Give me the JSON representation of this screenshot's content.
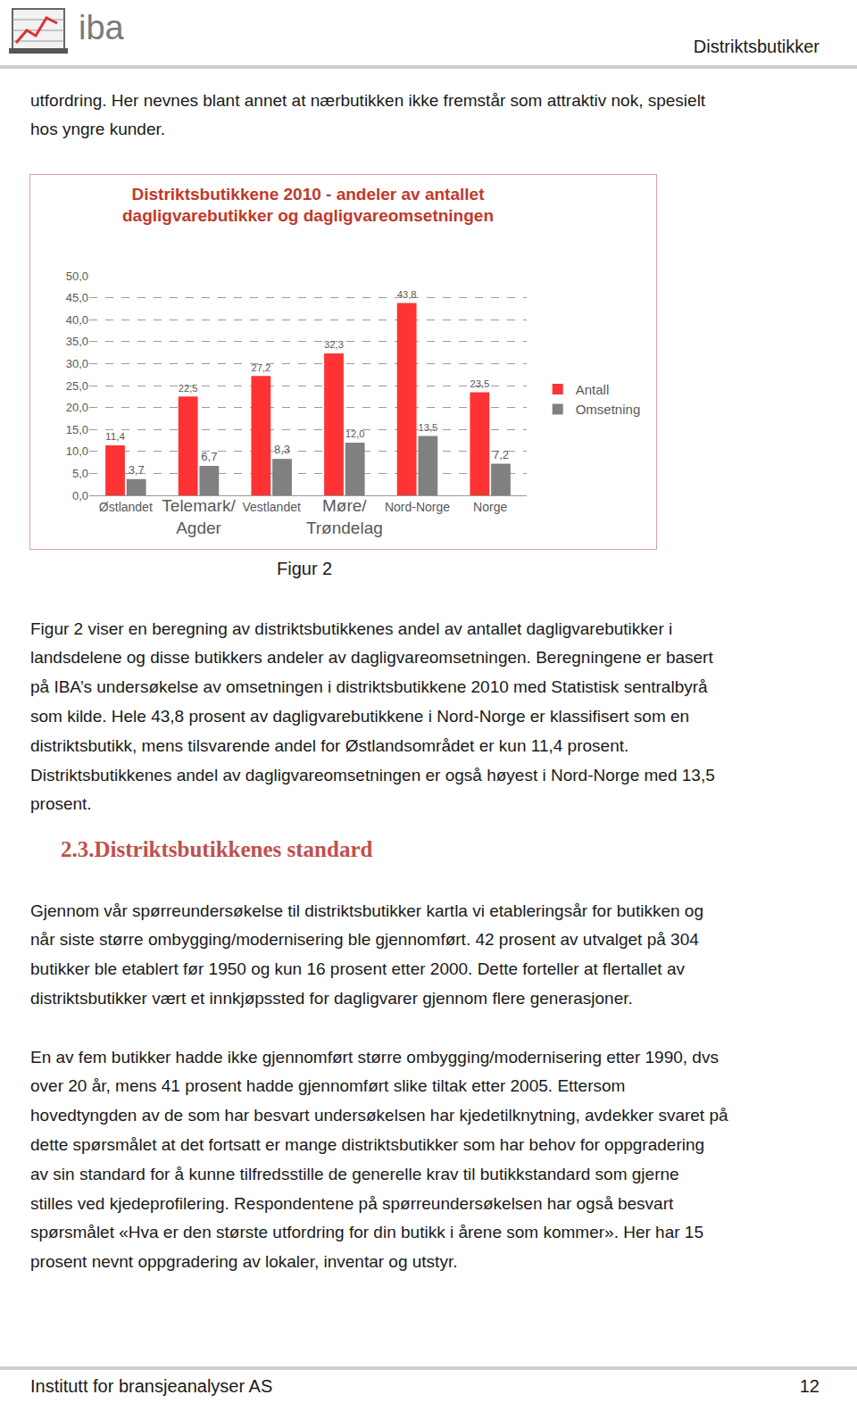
{
  "header": {
    "logo_text": "iba",
    "title": "Distriktsbutikker"
  },
  "intro_lines": [
    "utfordring. Her nevnes blant annet at nærbutikken ikke fremstår som attraktiv nok, spesielt",
    "hos yngre kunder."
  ],
  "chart_data": {
    "type": "bar",
    "title": "Distriktsbutikkene 2010 - andeler av antallet\ndagligvarebutikker og dagligvareomsetningen",
    "categories": [
      "Østlandet",
      "Telemark/\nAgder",
      "Vestlandet",
      "Møre/\nTrøndelag",
      "Nord-Norge",
      "Norge"
    ],
    "series": [
      {
        "name": "Antall",
        "color": "#ff3333",
        "values": [
          11.4,
          22.5,
          27.2,
          32.3,
          43.8,
          23.5
        ],
        "value_labels": [
          "11,4",
          "22,5",
          "27,2",
          "32,3",
          "43,8",
          "23,5"
        ]
      },
      {
        "name": "Omsetning",
        "color": "#808080",
        "values": [
          3.7,
          6.7,
          8.3,
          12.0,
          13.5,
          7.2
        ],
        "value_labels": [
          "3,7",
          "6,7",
          "8,3",
          "12,0",
          "13,5",
          "7,2"
        ]
      }
    ],
    "ylim": [
      0,
      50
    ],
    "yticks": [
      {
        "value": 0,
        "label": "0,0"
      },
      {
        "value": 5,
        "label": "5,0"
      },
      {
        "value": 10,
        "label": "10,0"
      },
      {
        "value": 15,
        "label": "15,0"
      },
      {
        "value": 20,
        "label": "20,0"
      },
      {
        "value": 25,
        "label": "25,0"
      },
      {
        "value": 30,
        "label": "30,0"
      },
      {
        "value": 35,
        "label": "35,0"
      },
      {
        "value": 40,
        "label": "40,0"
      },
      {
        "value": 45,
        "label": "45,0"
      },
      {
        "value": 50,
        "label": "50,0"
      }
    ],
    "grid": true,
    "legend": "right",
    "data_labels": true
  },
  "figure_caption": "Figur 2",
  "paragraph_after_chart": [
    "Figur 2 viser en beregning av distriktsbutikkenes andel av antallet dagligvarebutikker i",
    "landsdelene og disse butikkers andeler av dagligvareomsetningen. Beregningene er basert",
    "på IBA’s undersøkelse av omsetningen i distriktsbutikkene 2010 med Statistisk sentralbyrå",
    "som kilde. Hele 43,8 prosent av dagligvarebutikkene i Nord-Norge er klassifisert som en",
    "distriktsbutikk, mens tilsvarende andel for Østlandsområdet er kun 11,4 prosent.",
    "Distriktsbutikkenes andel av dagligvareomsetningen er også høyest i Nord-Norge med 13,5",
    "prosent."
  ],
  "section_heading": "2.3.Distriktsbutikkenes standard",
  "section_paragraphs": [
    [
      "Gjennom vår spørreundersøkelse til distriktsbutikker kartla vi etableringsår for butikken og",
      "når siste større ombygging/modernisering ble gjennomført. 42 prosent av utvalget på 304",
      "butikker ble etablert før 1950 og kun 16 prosent etter 2000. Dette forteller at flertallet av",
      "distriktsbutikker vært et innkjøpssted for dagligvarer gjennom flere generasjoner."
    ],
    [
      "En av fem butikker hadde ikke gjennomført større ombygging/modernisering etter 1990, dvs",
      "over 20 år, mens 41 prosent hadde gjennomført slike tiltak etter 2005. Ettersom",
      "hovedtyngden av de som har besvart undersøkelsen har kjedetilknytning, avdekker svaret på",
      "dette spørsmålet at det fortsatt er mange distriktsbutikker som har behov for oppgradering",
      "av sin standard for å kunne tilfredsstille de generelle krav til butikkstandard som gjerne",
      "stilles ved kjedeprofilering. Respondentene på spørreundersøkelsen har også besvart",
      "spørsmålet «Hva er den største utfordring for din butikk i årene som kommer». Her har 15",
      "prosent nevnt oppgradering av lokaler, inventar og utstyr."
    ]
  ],
  "footer": {
    "left": "Institutt for bransjeanalyser AS",
    "page": 12
  }
}
